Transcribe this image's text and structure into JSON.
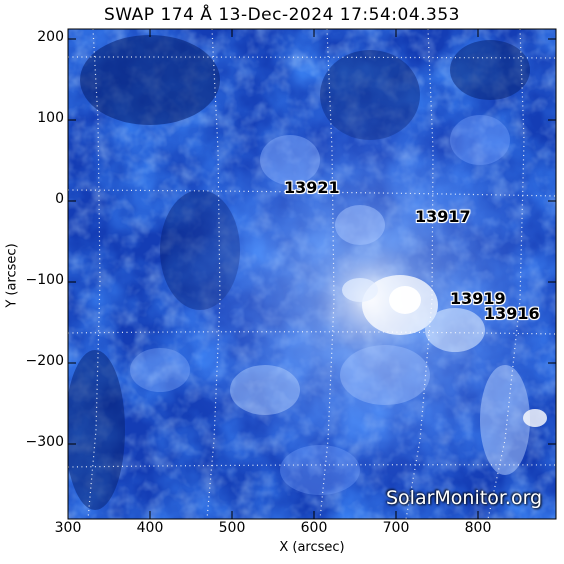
{
  "title": "SWAP 174 Å 13-Dec-2024 17:54:04.353",
  "xlabel": "X (arcsec)",
  "ylabel": "Y (arcsec)",
  "x_ticks": [
    "300",
    "400",
    "500",
    "600",
    "700",
    "800"
  ],
  "y_ticks": [
    "200",
    "100",
    "0",
    "−100",
    "−200",
    "−300"
  ],
  "x_range_arcsec": [
    300,
    895
  ],
  "y_range_arcsec": [
    -395,
    213
  ],
  "active_regions": [
    {
      "label": "13921",
      "x": 580,
      "y": 13
    },
    {
      "label": "13917",
      "x": 735,
      "y": -20
    },
    {
      "label": "13919",
      "x": 780,
      "y": -125
    },
    {
      "label": "13916",
      "x": 825,
      "y": -140
    }
  ],
  "credit": "SolarMonitor.org",
  "colors": {
    "image_dark": "#082a8a",
    "image_mid": "#2a60e8",
    "image_bright": "#c8deff",
    "grid": "#ffffff"
  }
}
